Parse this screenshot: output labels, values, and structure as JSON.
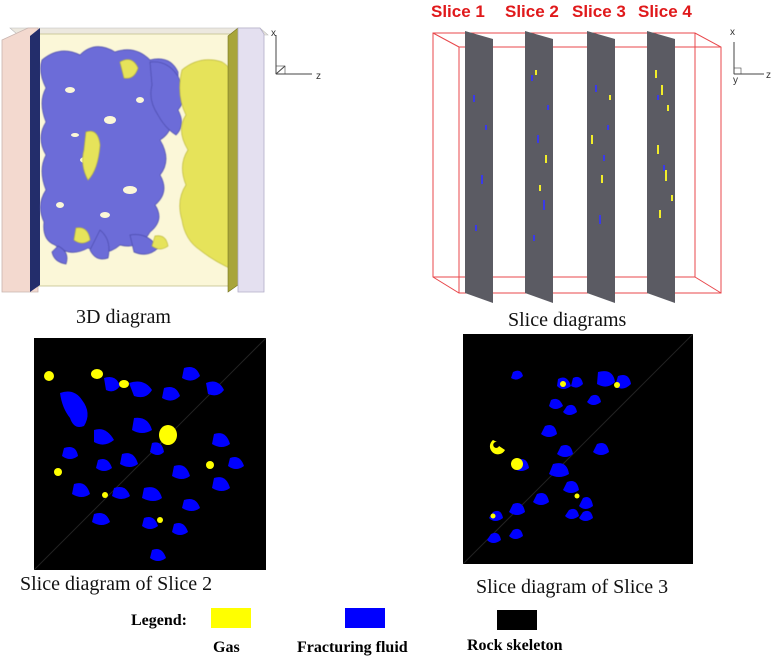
{
  "panels": {
    "top_left": {
      "caption": "3D diagram"
    },
    "top_right": {
      "caption": "Slice diagrams",
      "slice_labels": [
        "Slice 1",
        "Slice 2",
        "Slice 3",
        "Slice 4"
      ]
    },
    "bottom_left": {
      "caption": "Slice diagram of Slice 2"
    },
    "bottom_right": {
      "caption": "Slice diagram of Slice 3"
    }
  },
  "axes": {
    "vertical": "x",
    "horizontal": "z",
    "depth": "y"
  },
  "legend": {
    "title": "Legend:",
    "items": [
      {
        "label": "Gas",
        "color": "#ffff00"
      },
      {
        "label": "Fracturing fluid",
        "color": "#0000ff"
      },
      {
        "label": "Rock skeleton",
        "color": "#000000"
      }
    ]
  },
  "colors": {
    "gas_3d": "#e6e35a",
    "fluid_3d": "#6a6ad8",
    "slice_plane": "#5b5b63",
    "bbox": "#e8474b"
  }
}
